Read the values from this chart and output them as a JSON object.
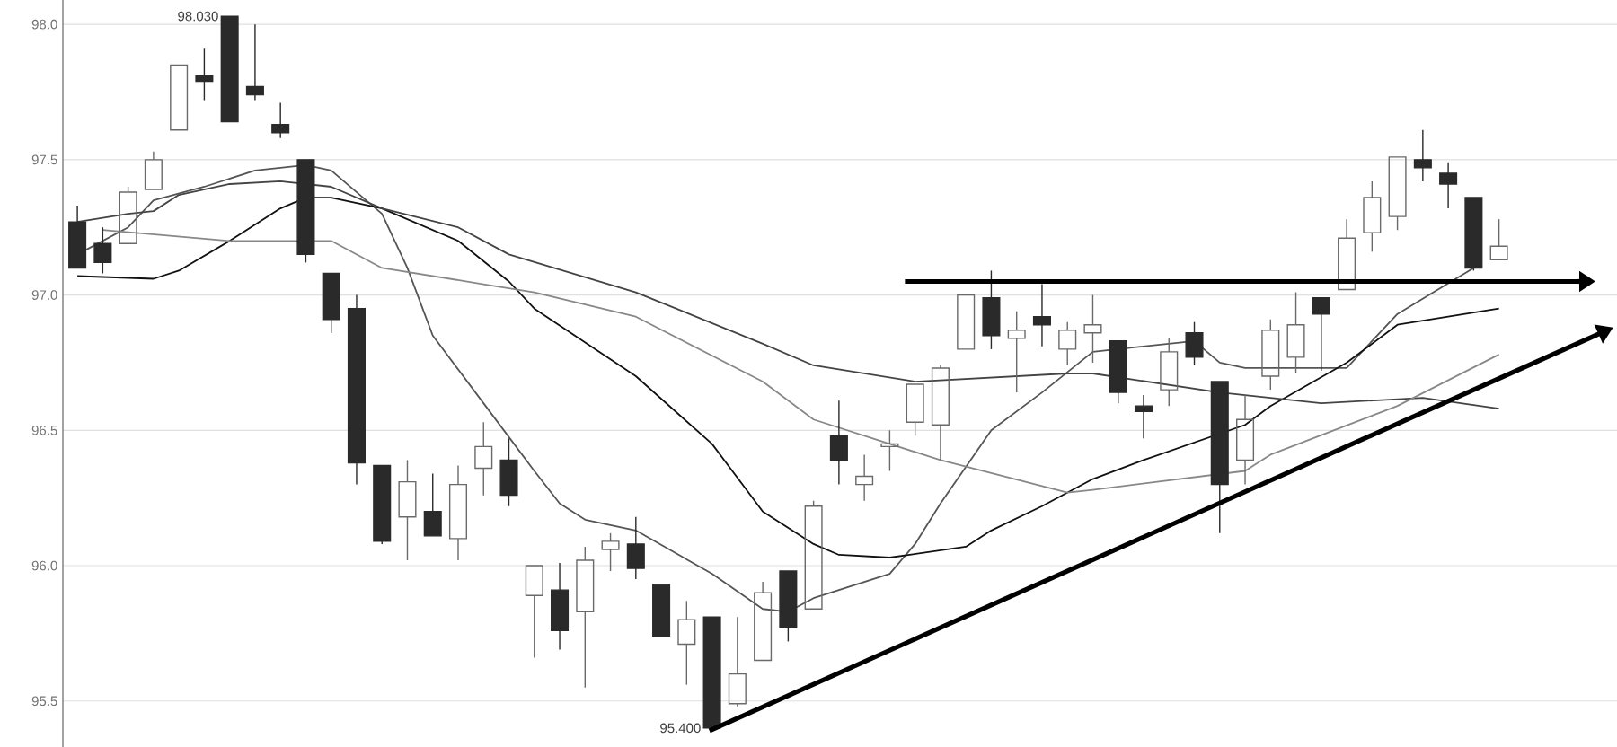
{
  "chart_data": {
    "type": "candlestick",
    "categories": [
      null,
      null,
      null,
      null,
      null,
      null,
      null,
      null,
      null,
      null,
      null,
      null,
      null,
      null,
      null,
      null,
      null,
      null,
      null,
      null,
      null,
      null,
      null,
      null,
      null,
      null,
      null,
      null,
      null,
      null,
      null,
      null,
      null,
      null,
      null,
      null,
      null,
      null,
      null,
      null,
      null,
      null,
      null,
      null,
      null,
      null,
      null,
      null,
      null,
      null,
      null,
      null,
      null,
      null,
      null,
      null,
      null
    ],
    "ohlc": [
      [
        97.27,
        97.33,
        97.1,
        97.1
      ],
      [
        97.19,
        97.25,
        97.08,
        97.12
      ],
      [
        97.19,
        97.4,
        97.19,
        97.38
      ],
      [
        97.39,
        97.53,
        97.39,
        97.5
      ],
      [
        97.61,
        97.85,
        97.61,
        97.85
      ],
      [
        97.81,
        97.91,
        97.72,
        97.79
      ],
      [
        98.03,
        98.03,
        97.64,
        97.64
      ],
      [
        97.77,
        98.0,
        97.72,
        97.74
      ],
      [
        97.63,
        97.71,
        97.58,
        97.6
      ],
      [
        97.5,
        97.5,
        97.12,
        97.15
      ],
      [
        97.08,
        97.08,
        96.86,
        96.91
      ],
      [
        96.95,
        97.0,
        96.3,
        96.38
      ],
      [
        96.37,
        96.37,
        96.08,
        96.09
      ],
      [
        96.18,
        96.39,
        96.02,
        96.31
      ],
      [
        96.2,
        96.34,
        96.11,
        96.11
      ],
      [
        96.1,
        96.37,
        96.02,
        96.3
      ],
      [
        96.36,
        96.53,
        96.26,
        96.44
      ],
      [
        96.39,
        96.47,
        96.22,
        96.26
      ],
      [
        95.89,
        96.0,
        95.66,
        96.0
      ],
      [
        95.91,
        96.01,
        95.69,
        95.76
      ],
      [
        95.83,
        96.07,
        95.55,
        96.02
      ],
      [
        96.06,
        96.12,
        95.98,
        96.09
      ],
      [
        96.08,
        96.18,
        95.95,
        95.99
      ],
      [
        95.93,
        95.93,
        95.74,
        95.74
      ],
      [
        95.71,
        95.87,
        95.56,
        95.8
      ],
      [
        95.81,
        95.81,
        95.4,
        95.4
      ],
      [
        95.49,
        95.81,
        95.48,
        95.6
      ],
      [
        95.65,
        95.94,
        95.65,
        95.9
      ],
      [
        95.98,
        95.98,
        95.72,
        95.77
      ],
      [
        95.84,
        96.24,
        95.84,
        96.22
      ],
      [
        96.48,
        96.61,
        96.3,
        96.39
      ],
      [
        96.3,
        96.41,
        96.24,
        96.33
      ],
      [
        96.44,
        96.5,
        96.35,
        96.45
      ],
      [
        96.53,
        96.67,
        96.48,
        96.67
      ],
      [
        96.52,
        96.74,
        96.39,
        96.73
      ],
      [
        96.8,
        97.0,
        96.8,
        97.0
      ],
      [
        96.99,
        97.09,
        96.8,
        96.85
      ],
      [
        96.84,
        96.94,
        96.64,
        96.87
      ],
      [
        96.92,
        97.04,
        96.81,
        96.89
      ],
      [
        96.8,
        96.9,
        96.74,
        96.87
      ],
      [
        96.86,
        97.0,
        96.75,
        96.89
      ],
      [
        96.83,
        96.83,
        96.6,
        96.64
      ],
      [
        96.59,
        96.63,
        96.47,
        96.57
      ],
      [
        96.65,
        96.84,
        96.59,
        96.79
      ],
      [
        96.86,
        96.9,
        96.74,
        96.77
      ],
      [
        96.68,
        96.68,
        96.12,
        96.3
      ],
      [
        96.39,
        96.63,
        96.3,
        96.54
      ],
      [
        96.7,
        96.91,
        96.65,
        96.87
      ],
      [
        96.77,
        97.01,
        96.71,
        96.89
      ],
      [
        96.99,
        96.99,
        96.72,
        96.93
      ],
      [
        97.02,
        97.28,
        97.02,
        97.21
      ],
      [
        97.23,
        97.42,
        97.16,
        97.36
      ],
      [
        97.29,
        97.51,
        97.24,
        97.51
      ],
      [
        97.5,
        97.61,
        97.42,
        97.47
      ],
      [
        97.45,
        97.49,
        97.32,
        97.41
      ],
      [
        97.36,
        97.36,
        97.09,
        97.1
      ],
      [
        97.13,
        97.28,
        97.13,
        97.18
      ]
    ],
    "series": [
      {
        "type": "line",
        "color": "#555555",
        "values": [
          97.15,
          null,
          97.25,
          97.35,
          null,
          97.4,
          null,
          97.46,
          null,
          97.48,
          97.46,
          null,
          97.3,
          97.1,
          96.85,
          null,
          96.6,
          null,
          96.35,
          96.23,
          96.17,
          null,
          96.13,
          null,
          null,
          95.97,
          null,
          95.84,
          95.83,
          95.88,
          null,
          null,
          95.97,
          96.08,
          96.23,
          null,
          96.5,
          null,
          96.64,
          null,
          96.79,
          null,
          null,
          null,
          96.83,
          96.75,
          96.73,
          null,
          null,
          null,
          96.73,
          null,
          96.93,
          null,
          null,
          97.1,
          null
        ]
      },
      {
        "type": "line",
        "color": "#111111",
        "values": [
          97.07,
          null,
          null,
          97.06,
          97.09,
          null,
          97.2,
          null,
          97.32,
          97.36,
          97.36,
          null,
          97.32,
          null,
          null,
          97.2,
          null,
          97.05,
          96.95,
          null,
          null,
          null,
          96.7,
          null,
          null,
          96.45,
          null,
          96.2,
          null,
          96.08,
          96.04,
          null,
          96.03,
          null,
          null,
          96.07,
          96.13,
          null,
          96.22,
          null,
          96.32,
          null,
          96.39,
          null,
          null,
          null,
          96.52,
          96.59,
          null,
          null,
          96.75,
          null,
          96.89,
          null,
          null,
          null,
          96.95
        ]
      },
      {
        "type": "line",
        "color": "#444444",
        "values": [
          97.27,
          null,
          97.3,
          97.31,
          97.37,
          null,
          97.41,
          null,
          97.42,
          null,
          97.4,
          null,
          97.32,
          null,
          null,
          97.25,
          null,
          97.15,
          null,
          null,
          null,
          null,
          97.01,
          null,
          null,
          null,
          null,
          96.82,
          null,
          96.74,
          null,
          null,
          null,
          96.68,
          null,
          null,
          null,
          null,
          null,
          96.71,
          96.71,
          null,
          null,
          null,
          null,
          96.64,
          null,
          null,
          null,
          96.6,
          null,
          null,
          null,
          96.62,
          null,
          null,
          96.58
        ]
      },
      {
        "type": "line",
        "color": "#888888",
        "values": [
          null,
          97.24,
          null,
          null,
          null,
          null,
          97.2,
          null,
          null,
          null,
          97.2,
          null,
          97.1,
          null,
          null,
          null,
          97.04,
          null,
          97.01,
          null,
          null,
          null,
          96.92,
          null,
          null,
          null,
          null,
          96.68,
          null,
          96.54,
          null,
          null,
          null,
          null,
          96.39,
          null,
          null,
          null,
          null,
          96.27,
          96.28,
          null,
          null,
          null,
          null,
          null,
          96.35,
          96.41,
          null,
          null,
          null,
          null,
          96.59,
          null,
          null,
          null,
          96.78
        ]
      }
    ],
    "ylim": [
      95.33,
      98.09
    ],
    "yticks": [
      {
        "value": 95.5,
        "label": "95.5"
      },
      {
        "value": 96.0,
        "label": "96.0"
      },
      {
        "value": 96.5,
        "label": "96.5"
      },
      {
        "value": 97.0,
        "label": "97.0"
      },
      {
        "value": 97.5,
        "label": "97.5"
      },
      {
        "value": 98.0,
        "label": "98.0"
      }
    ],
    "grid": "y",
    "tick_labels": "y",
    "ref_lines": [
      {
        "axis": "y",
        "value": 97.05,
        "color": "#000000"
      }
    ],
    "annotations": [
      "98.030",
      "95.400"
    ]
  }
}
